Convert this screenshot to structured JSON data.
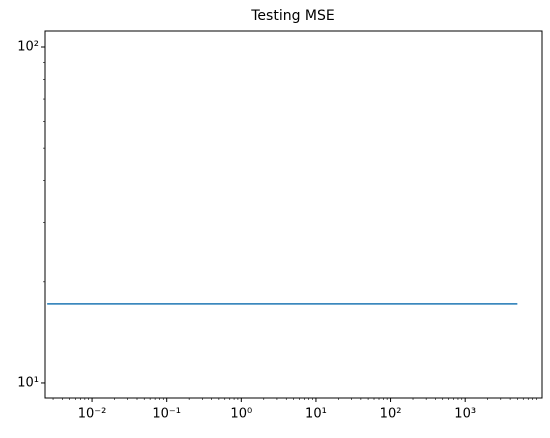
{
  "chart_data": {
    "type": "line",
    "title": "Testing MSE",
    "x": [
      0.0025,
      5000
    ],
    "series": [
      {
        "name": "Testing MSE",
        "color": "#1f77b4",
        "values": [
          17.2,
          17.2
        ]
      }
    ],
    "xlim": [
      0.00234,
      10700
    ],
    "ylim": [
      9.02,
      111.6
    ],
    "xscale": "log",
    "yscale": "log",
    "minor_ticks": true,
    "legend": false,
    "xticks": [
      {
        "value": 0.01,
        "label": "10⁻²"
      },
      {
        "value": 0.1,
        "label": "10⁻¹"
      },
      {
        "value": 1,
        "label": "10⁰"
      },
      {
        "value": 10,
        "label": "10¹"
      },
      {
        "value": 100,
        "label": "10²"
      },
      {
        "value": 1000,
        "label": "10³"
      }
    ],
    "yticks": [
      {
        "value": 10,
        "label": "10¹"
      },
      {
        "value": 100,
        "label": "10²"
      }
    ]
  }
}
